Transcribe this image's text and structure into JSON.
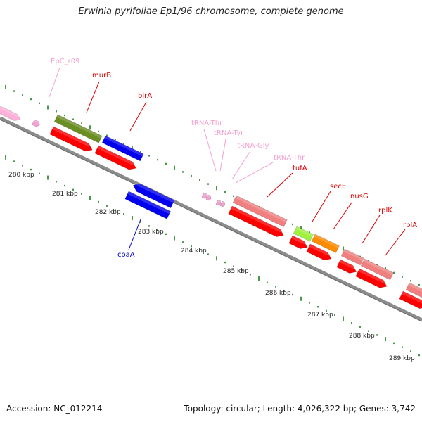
{
  "title": "Erwinia pyrifoliae Ep1/96 chromosome, complete genome",
  "footer": {
    "accession": "Accession: NC_012214",
    "topology": "Topology: circular; Length: 4,026,322 bp; Genes: 3,742"
  },
  "colors": {
    "backbone": "#8c8c8c",
    "tick": "#1e7d1e",
    "cds": "#ff0000",
    "trna": "#f5a0d0",
    "gene_pink": "#f08080",
    "gene_olive": "#6b8e23",
    "gene_blue": "#0000ee",
    "gene_lime": "#a0f040",
    "gene_orange": "#ff8c00",
    "gene_lightpink": "#ffb0d8"
  },
  "scale": {
    "unit": "kbp",
    "labels": [
      "280 kbp",
      "281 kbp",
      "282 kbp",
      "283 kbp",
      "284 kbp",
      "285 kbp",
      "286 kbp",
      "287 kbp",
      "288 kbp",
      "289 kbp"
    ]
  },
  "labels": [
    {
      "text": "EpC_r09",
      "kind": "trna"
    },
    {
      "text": "murB",
      "kind": "cds"
    },
    {
      "text": "birA",
      "kind": "cds"
    },
    {
      "text": "tRNA-Thr",
      "kind": "trna"
    },
    {
      "text": "tRNA-Tyr",
      "kind": "trna"
    },
    {
      "text": "tRNA-Gly",
      "kind": "trna"
    },
    {
      "text": "tRNA-Thr",
      "kind": "trna"
    },
    {
      "text": "tufA",
      "kind": "cds"
    },
    {
      "text": "secE",
      "kind": "cds"
    },
    {
      "text": "nusG",
      "kind": "cds"
    },
    {
      "text": "rplK",
      "kind": "cds"
    },
    {
      "text": "rplA",
      "kind": "cds"
    },
    {
      "text": "coaA",
      "kind": "cds_blue"
    }
  ]
}
